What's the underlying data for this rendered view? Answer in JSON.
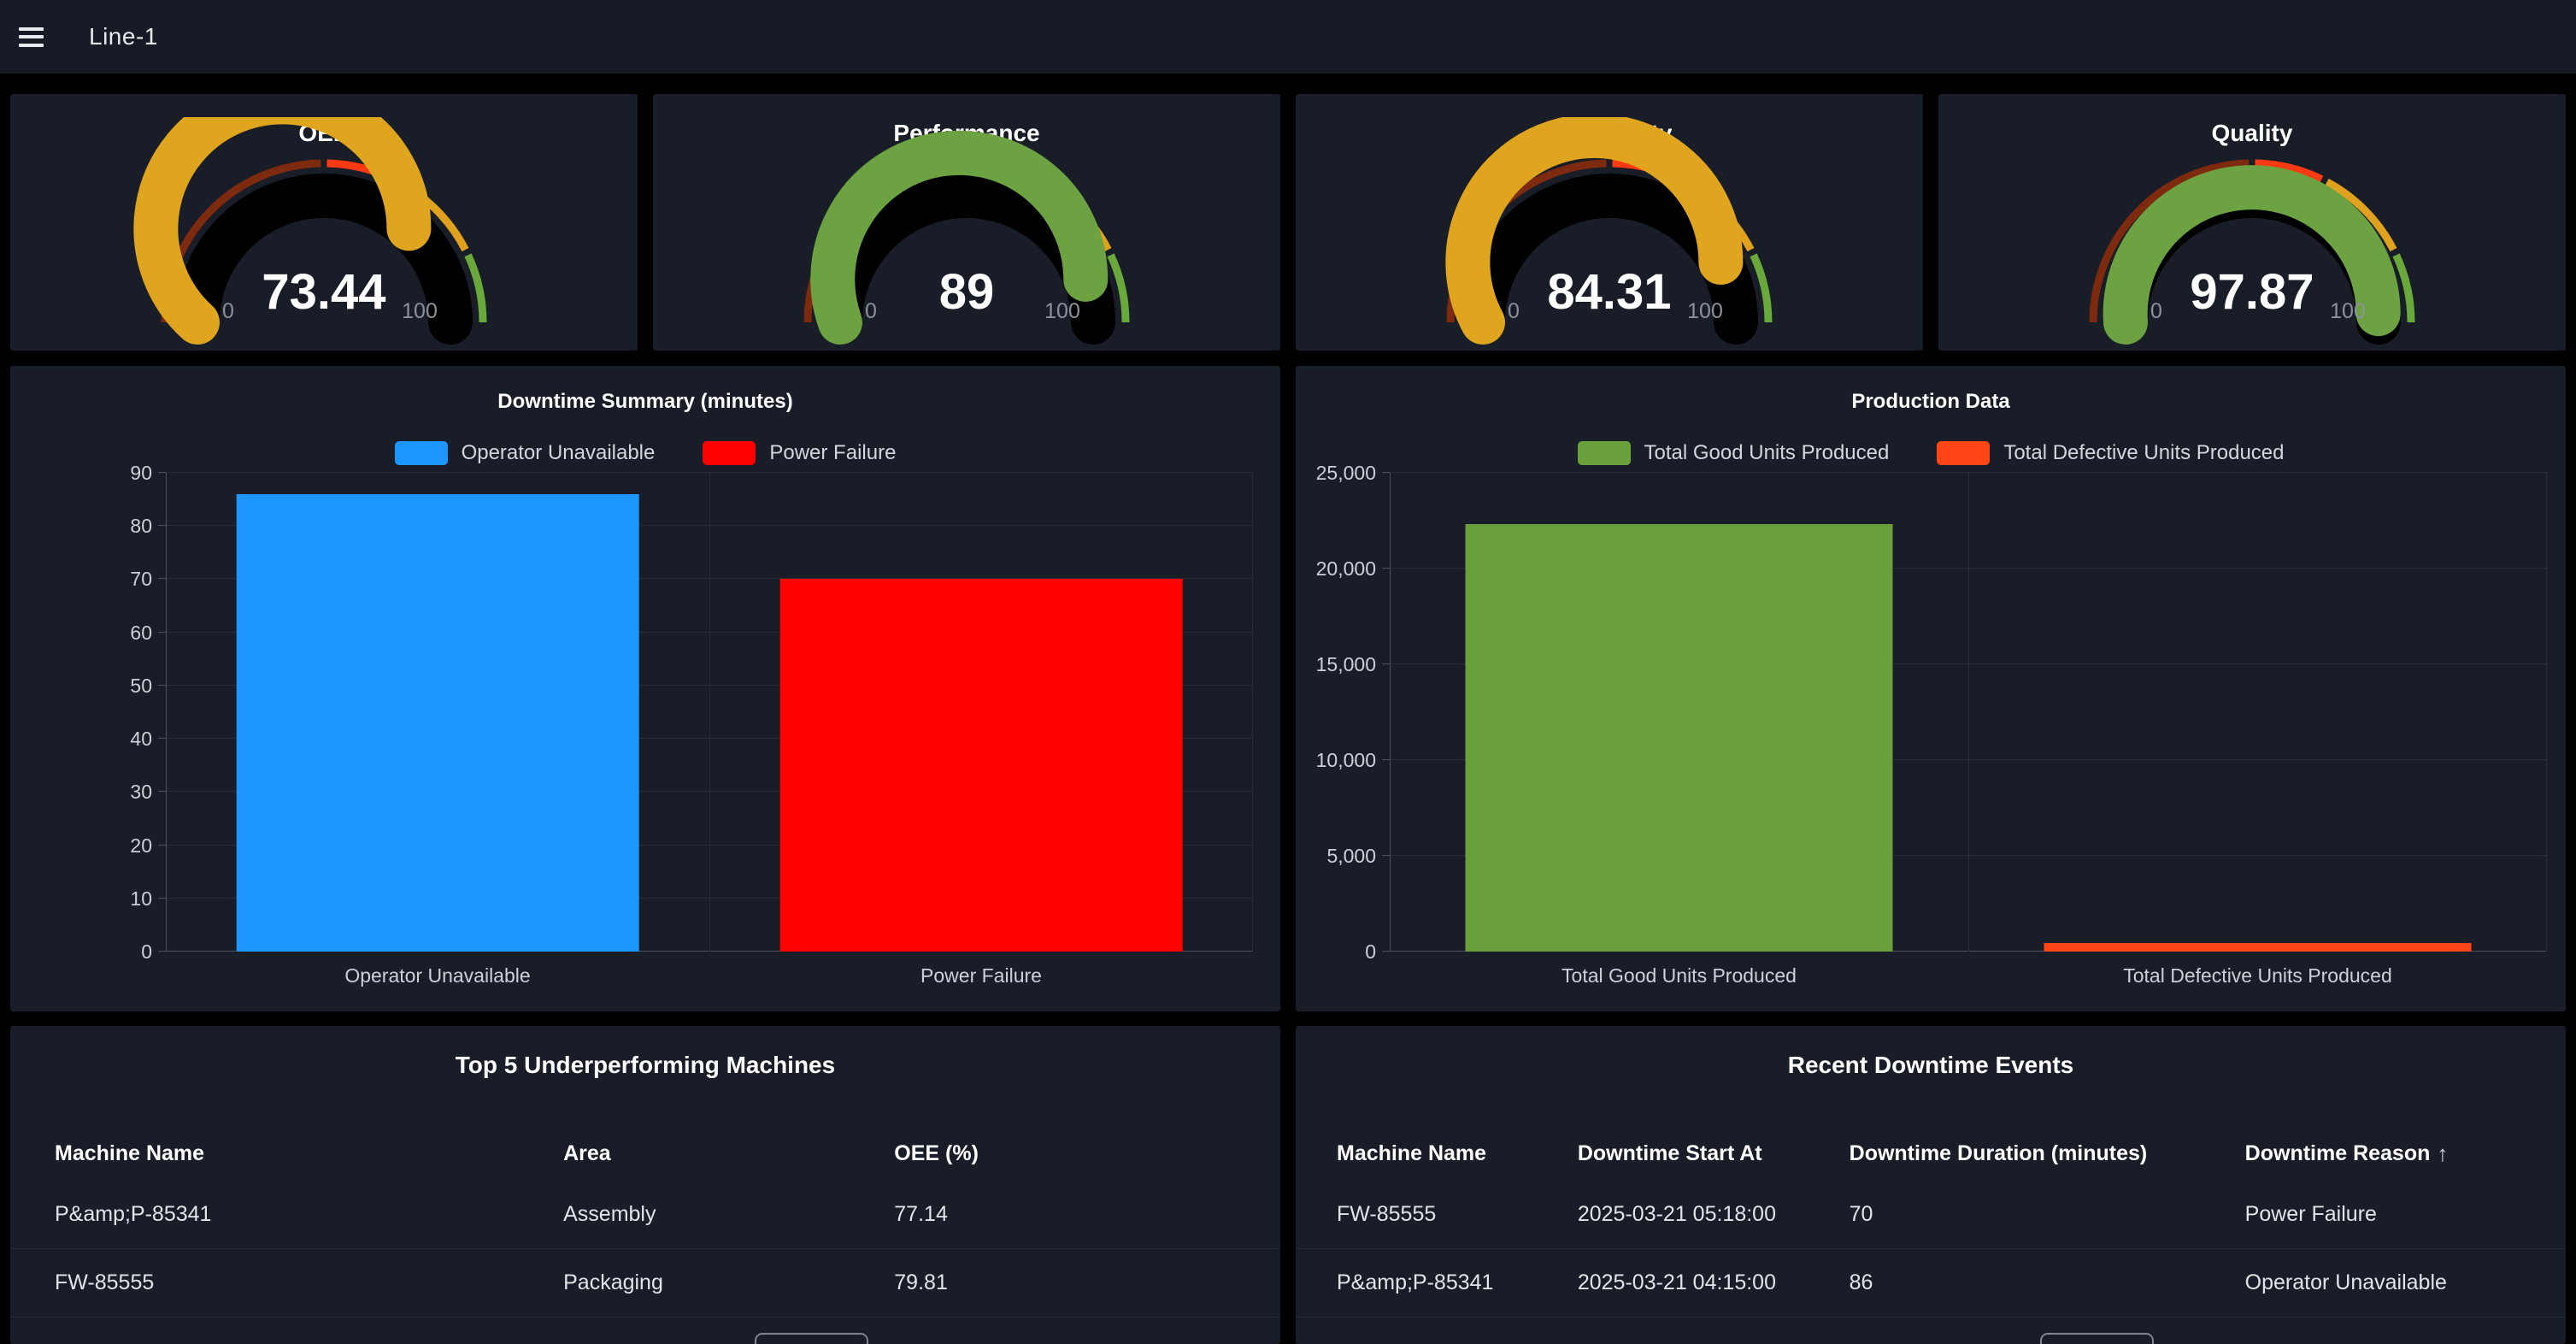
{
  "header": {
    "title": "Line-1"
  },
  "gauge_scale": {
    "min_label": "0",
    "max_label": "100",
    "max": 100,
    "thresholds": [
      {
        "from": 0,
        "to": 50,
        "color": "#7E2A0F"
      },
      {
        "from": 50,
        "to": 65,
        "color": "#FF3A12"
      },
      {
        "from": 65,
        "to": 85.5,
        "color": "#DFA11E"
      },
      {
        "from": 85.5,
        "to": 100,
        "color": "#69A83B"
      }
    ],
    "track_color": "#000000"
  },
  "gauges": [
    {
      "title": "OEE",
      "value": "73.44",
      "numeric": 73.44,
      "color": "#E0A51E"
    },
    {
      "title": "Performance",
      "value": "89",
      "numeric": 89,
      "color": "#6CA242"
    },
    {
      "title": "Availability",
      "value": "84.31",
      "numeric": 84.31,
      "color": "#E0A51E"
    },
    {
      "title": "Quality",
      "value": "97.87",
      "numeric": 97.87,
      "color": "#6CA242"
    }
  ],
  "chart_data": [
    {
      "type": "bar",
      "title": "Downtime Summary (minutes)",
      "categories": [
        "Operator Unavailable",
        "Power Failure"
      ],
      "values": [
        86,
        70
      ],
      "colors": [
        "#1E96FF",
        "#FF0000"
      ],
      "ylim": [
        0,
        90
      ],
      "yticks": [
        0,
        10,
        20,
        30,
        40,
        50,
        60,
        70,
        80,
        90
      ],
      "ytick_labels": [
        "0",
        "10",
        "20",
        "30",
        "40",
        "50",
        "60",
        "70",
        "80",
        "90"
      ],
      "legend": [
        "Operator Unavailable",
        "Power Failure"
      ],
      "legend_position": "top",
      "grid": true
    },
    {
      "type": "bar",
      "title": "Production Data",
      "categories": [
        "Total Good Units Produced",
        "Total Defective Units Produced"
      ],
      "values": [
        22300,
        450
      ],
      "colors": [
        "#6AA03C",
        "#FF4515"
      ],
      "ylim": [
        0,
        25000
      ],
      "yticks": [
        0,
        5000,
        10000,
        15000,
        20000,
        25000
      ],
      "ytick_labels": [
        "0",
        "5,000",
        "10,000",
        "15,000",
        "20,000",
        "25,000"
      ],
      "legend": [
        "Total Good Units Produced",
        "Total Defective Units Produced"
      ],
      "legend_position": "top",
      "grid": true
    }
  ],
  "tables": [
    {
      "title": "Top 5 Underperforming Machines",
      "columns": [
        "Machine Name",
        "Area",
        "OEE (%)"
      ],
      "rows": [
        [
          "P&amp;P-85341",
          "Assembly",
          "77.14"
        ],
        [
          "FW-85555",
          "Packaging",
          "79.81"
        ]
      ]
    },
    {
      "title": "Recent Downtime Events",
      "columns": [
        "Machine Name",
        "Downtime Start At",
        "Downtime Duration (minutes)",
        "Downtime Reason"
      ],
      "sort": {
        "column_index": 3,
        "direction": "asc",
        "arrow": "↑"
      },
      "rows": [
        [
          "FW-85555",
          "2025-03-21 05:18:00",
          "70",
          "Power Failure"
        ],
        [
          "P&amp;P-85341",
          "2025-03-21 04:15:00",
          "86",
          "Operator Unavailable"
        ]
      ]
    }
  ]
}
